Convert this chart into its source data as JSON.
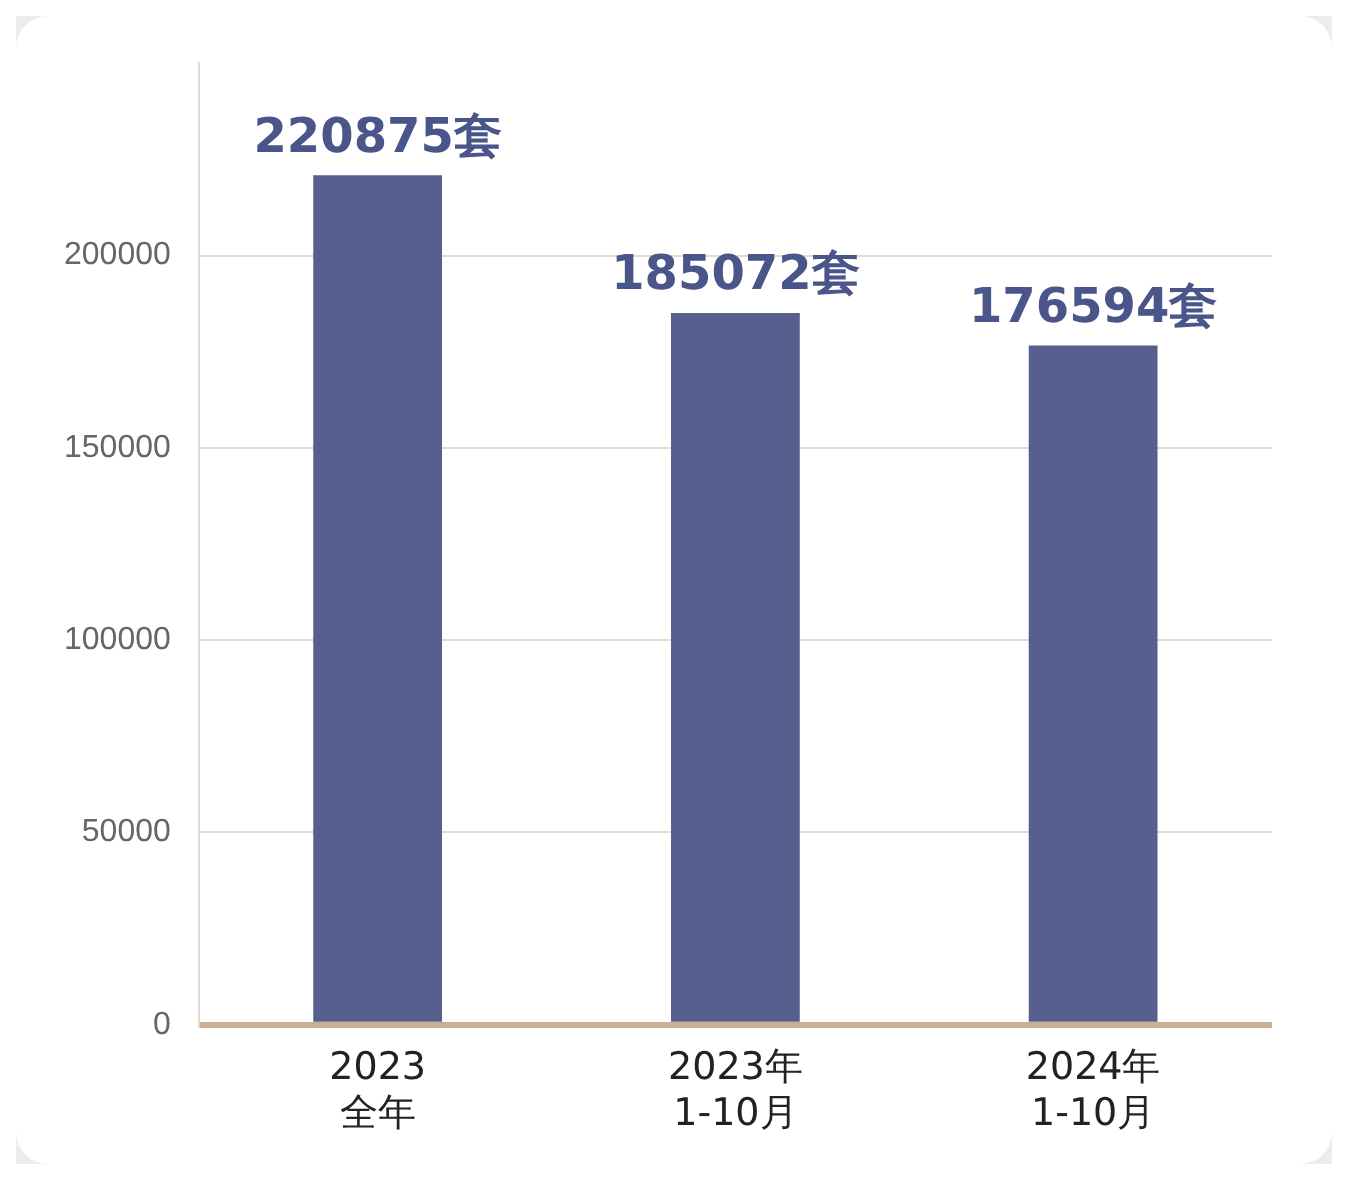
{
  "chart_data": {
    "type": "bar",
    "categories": [
      "2023\n全年",
      "2023年\n1-10月",
      "2024年\n1-10月"
    ],
    "values": [
      220875,
      185072,
      176594
    ],
    "value_labels": [
      "220875套",
      "185072套",
      "176594套"
    ],
    "color": "#55608f",
    "ylim": [
      0,
      250000
    ],
    "yticks": [
      0,
      50000,
      100000,
      150000,
      200000
    ],
    "grid": "y",
    "legend": false
  }
}
